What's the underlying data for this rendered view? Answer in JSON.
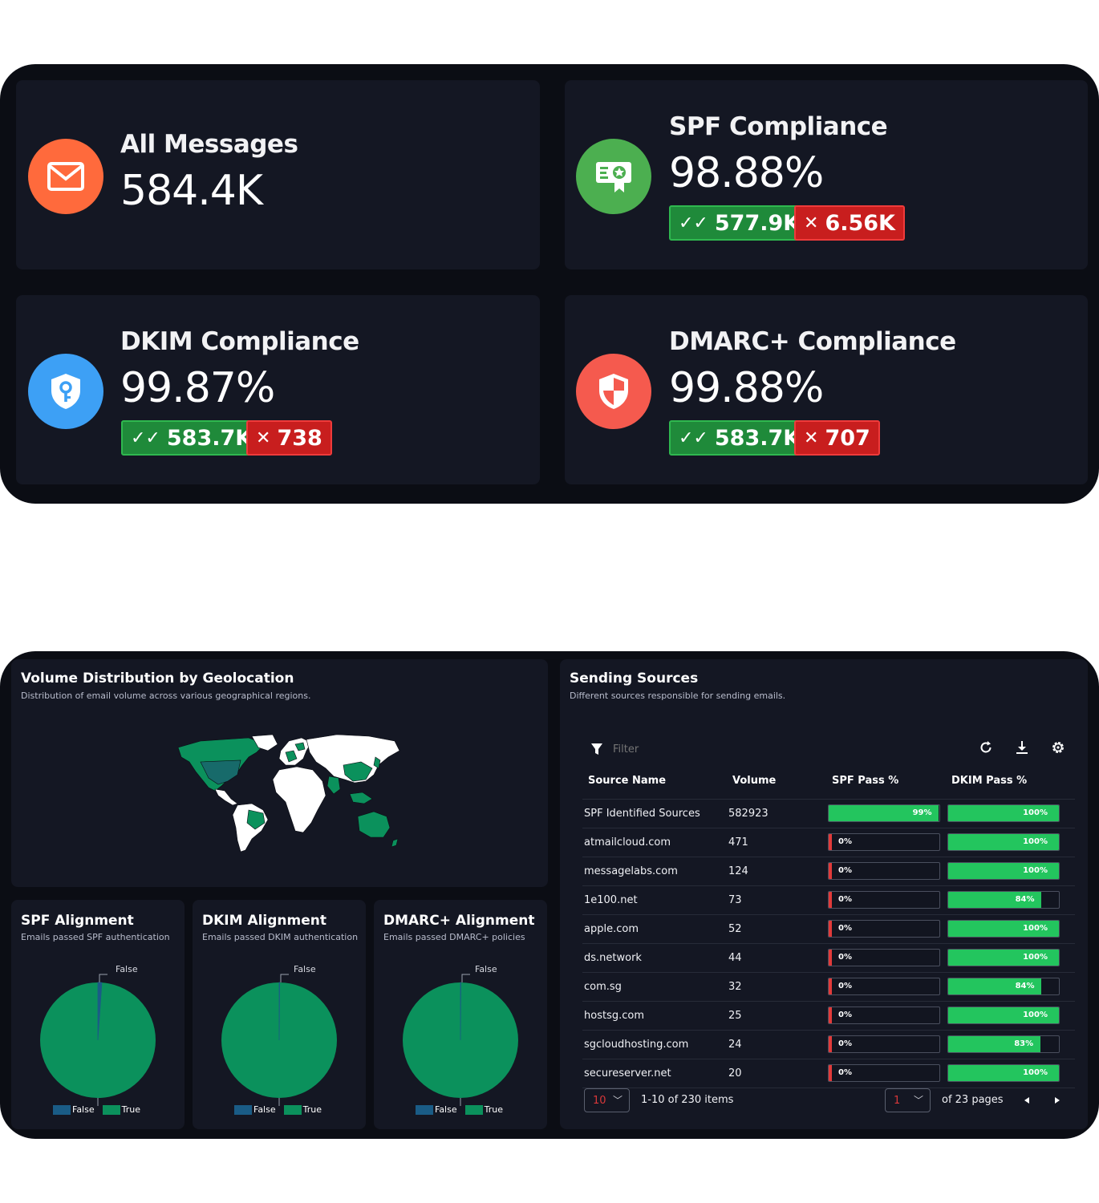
{
  "stats": {
    "all_messages": {
      "title": "All Messages",
      "value": "584.4K",
      "icon": "envelope-icon",
      "color": "#ff6a3c"
    },
    "spf": {
      "title": "SPF Compliance",
      "value": "98.88%",
      "pass": "577.9K",
      "fail": "6.56K",
      "icon": "certificate-icon",
      "color": "#4caf50"
    },
    "dkim": {
      "title": "DKIM Compliance",
      "value": "99.87%",
      "pass": "583.7K",
      "fail": "738",
      "icon": "shield-key-icon",
      "color": "#3da0f5"
    },
    "dmarc": {
      "title": "DMARC+ Compliance",
      "value": "99.88%",
      "pass": "583.7K",
      "fail": "707",
      "icon": "shield-half-icon",
      "color": "#f55a4e"
    }
  },
  "geo": {
    "title": "Volume Distribution by Geolocation",
    "subtitle": "Distribution of email volume across various geographical regions."
  },
  "alignments": [
    {
      "title": "SPF Alignment",
      "subtitle": "Emails passed SPF authentication",
      "false_label": "False",
      "true_label": "True",
      "false_fraction": 0.011
    },
    {
      "title": "DKIM Alignment",
      "subtitle": "Emails passed DKIM authentication",
      "false_label": "False",
      "true_label": "True",
      "false_fraction": 0.0013
    },
    {
      "title": "DMARC+ Alignment",
      "subtitle": "Emails passed DMARC+ policies",
      "false_label": "False",
      "true_label": "True",
      "false_fraction": 0.0012
    }
  ],
  "colors": {
    "pie_true": "#0b915c",
    "pie_false": "#1a5c86",
    "bar_pass": "#23c55e",
    "bar_fail": "#e23a3a"
  },
  "sources": {
    "title": "Sending Sources",
    "subtitle": "Different sources responsible for sending emails.",
    "filter_placeholder": "Filter",
    "columns": [
      "Source Name",
      "Volume",
      "SPF Pass %",
      "DKIM Pass %"
    ],
    "rows": [
      {
        "name": "SPF Identified Sources",
        "volume": "582923",
        "spf": 99,
        "spf_label": "99%",
        "dkim": 100,
        "dkim_label": "100%"
      },
      {
        "name": "atmailcloud.com",
        "volume": "471",
        "spf": 0,
        "spf_label": "0%",
        "dkim": 100,
        "dkim_label": "100%"
      },
      {
        "name": "messagelabs.com",
        "volume": "124",
        "spf": 0,
        "spf_label": "0%",
        "dkim": 100,
        "dkim_label": "100%"
      },
      {
        "name": "1e100.net",
        "volume": "73",
        "spf": 0,
        "spf_label": "0%",
        "dkim": 84,
        "dkim_label": "84%"
      },
      {
        "name": "apple.com",
        "volume": "52",
        "spf": 0,
        "spf_label": "0%",
        "dkim": 100,
        "dkim_label": "100%"
      },
      {
        "name": "ds.network",
        "volume": "44",
        "spf": 0,
        "spf_label": "0%",
        "dkim": 100,
        "dkim_label": "100%"
      },
      {
        "name": "com.sg",
        "volume": "32",
        "spf": 0,
        "spf_label": "0%",
        "dkim": 84,
        "dkim_label": "84%"
      },
      {
        "name": "hostsg.com",
        "volume": "25",
        "spf": 0,
        "spf_label": "0%",
        "dkim": 100,
        "dkim_label": "100%"
      },
      {
        "name": "sgcloudhosting.com",
        "volume": "24",
        "spf": 0,
        "spf_label": "0%",
        "dkim": 83,
        "dkim_label": "83%"
      },
      {
        "name": "secureserver.net",
        "volume": "20",
        "spf": 0,
        "spf_label": "0%",
        "dkim": 100,
        "dkim_label": "100%"
      }
    ],
    "pager": {
      "page_size": "10",
      "items_text": "1-10 of 230 items",
      "page": "1",
      "pages_text": "of 23 pages"
    }
  }
}
